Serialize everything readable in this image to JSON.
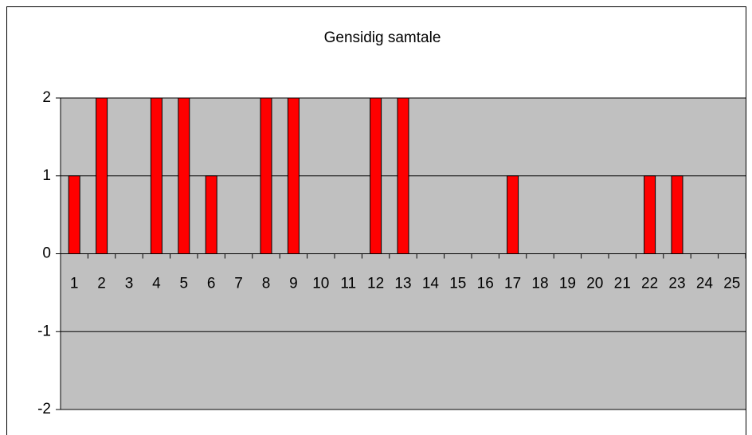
{
  "chart_data": {
    "type": "bar",
    "title": "Gensidig samtale",
    "categories": [
      "1",
      "2",
      "3",
      "4",
      "5",
      "6",
      "7",
      "8",
      "9",
      "10",
      "11",
      "12",
      "13",
      "14",
      "15",
      "16",
      "17",
      "18",
      "19",
      "20",
      "21",
      "22",
      "23",
      "24",
      "25"
    ],
    "values": [
      1,
      2,
      0,
      2,
      2,
      1,
      0,
      2,
      2,
      0,
      0,
      2,
      2,
      0,
      0,
      0,
      1,
      0,
      0,
      0,
      0,
      1,
      1,
      0,
      0
    ],
    "color": "#ff0000",
    "ylim": [
      -2,
      2
    ],
    "yticks": [
      -2,
      -1,
      0,
      1,
      2
    ],
    "grid": true
  }
}
